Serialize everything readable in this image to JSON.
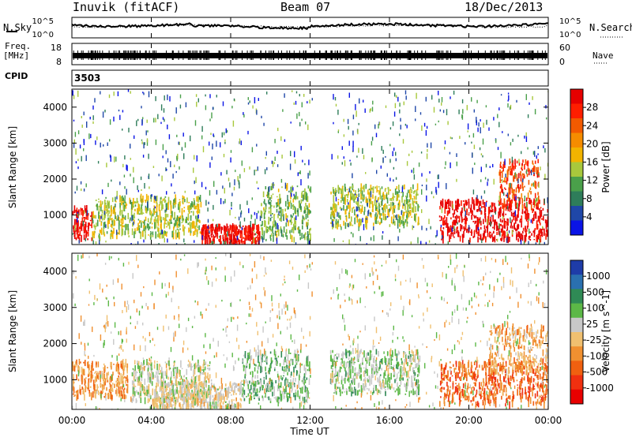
{
  "header": {
    "station": "Inuvik (fitACF)",
    "beam": "Beam 07",
    "date": "18/Dec/2013"
  },
  "top_panels": {
    "nsky_label": "N.Sky",
    "nsearch_label": "N.Search",
    "noise_ticks_left": [
      "10^5",
      "10^0"
    ],
    "noise_ticks_right": [
      "10^5",
      "10^0"
    ],
    "freq_label_1": "Freq.",
    "freq_label_2": "[MHz]",
    "freq_ticks_left": [
      "18",
      "8"
    ],
    "nave_ticks_right": [
      "60",
      "0"
    ],
    "nave_label": "Nave",
    "cpid_label": "CPID",
    "cpid_value": "3503"
  },
  "axes": {
    "time_ticks": [
      "00:00",
      "04:00",
      "08:00",
      "12:00",
      "16:00",
      "20:00",
      "00:00"
    ],
    "xlabel": "Time UT",
    "range_ticks": [
      "1000",
      "2000",
      "3000",
      "4000"
    ],
    "ylabel": "Slant Range [km]"
  },
  "colors": {
    "power_scale": [
      "#0a14e6",
      "#1f47a8",
      "#2e7d5a",
      "#4aa04a",
      "#a8c83c",
      "#f2b400",
      "#f58c00",
      "#f25a00",
      "#ff1e00",
      "#e60000"
    ],
    "velocity_scale": [
      "#1e3ca8",
      "#2a70b0",
      "#2f8a55",
      "#5cb847",
      "#c8c8c8",
      "#f0c070",
      "#f09030",
      "#f06010",
      "#f03010",
      "#e80000"
    ]
  },
  "chart_data": [
    {
      "type": "heatmap",
      "title": "",
      "xlabel": "Time UT",
      "ylabel": "Slant Range [km]",
      "xlim": [
        "00:00",
        "24:00"
      ],
      "ylim": [
        180,
        4500
      ],
      "colorbar": {
        "label": "Power [dB]",
        "ticks": [
          "4",
          "8",
          "12",
          "16",
          "20",
          "24",
          "28"
        ],
        "range": [
          0,
          30
        ]
      },
      "features": [
        {
          "time": [
            0.0,
            1.0
          ],
          "range": [
            300,
            1200
          ],
          "value": 28
        },
        {
          "time": [
            1.0,
            6.5
          ],
          "range": [
            400,
            1500
          ],
          "value": 14
        },
        {
          "time": [
            6.5,
            9.5
          ],
          "range": [
            200,
            700
          ],
          "value": 28
        },
        {
          "time": [
            9.5,
            12.0
          ],
          "range": [
            300,
            1800
          ],
          "value": 12
        },
        {
          "time": [
            13.0,
            17.5
          ],
          "range": [
            700,
            1800
          ],
          "value": 14
        },
        {
          "time": [
            18.5,
            24.0
          ],
          "range": [
            300,
            1400
          ],
          "value": 29
        },
        {
          "time": [
            21.5,
            23.5
          ],
          "range": [
            1200,
            2500
          ],
          "value": 24
        }
      ]
    },
    {
      "type": "heatmap",
      "title": "",
      "xlabel": "Time UT",
      "ylabel": "Slant Range [km]",
      "xlim": [
        "00:00",
        "24:00"
      ],
      "ylim": [
        180,
        4500
      ],
      "colorbar": {
        "label": "Velocity [m s^-1]",
        "ticks": [
          "1000",
          "500",
          "100",
          "25",
          "-25",
          "-100",
          "-500",
          "-1000"
        ],
        "range": [
          -1000,
          1000
        ]
      },
      "features": [
        {
          "time": [
            0.0,
            2.8
          ],
          "range": [
            500,
            1500
          ],
          "value": -300
        },
        {
          "time": [
            3.0,
            7.0
          ],
          "range": [
            400,
            1500
          ],
          "value": 100
        },
        {
          "time": [
            4.0,
            8.5
          ],
          "range": [
            200,
            900
          ],
          "value": 0
        },
        {
          "time": [
            8.5,
            12.0
          ],
          "range": [
            400,
            1800
          ],
          "value": 300
        },
        {
          "time": [
            13.0,
            17.5
          ],
          "range": [
            600,
            1800
          ],
          "value": 200
        },
        {
          "time": [
            18.5,
            24.0
          ],
          "range": [
            300,
            1500
          ],
          "value": -500
        },
        {
          "time": [
            21.0,
            24.0
          ],
          "range": [
            1200,
            2500
          ],
          "value": -200
        }
      ]
    }
  ]
}
